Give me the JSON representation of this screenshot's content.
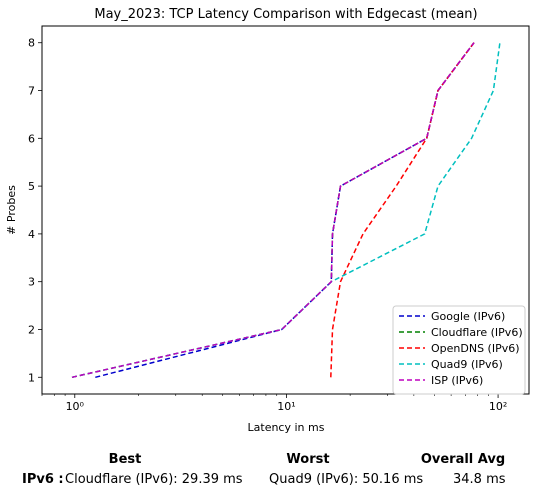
{
  "chart_data": {
    "type": "line",
    "title": "May_2023: TCP Latency Comparison with Edgecast (mean)",
    "xlabel": "Latency in ms",
    "ylabel": "# Probes",
    "xscale": "log",
    "xlim": [
      0.7,
      140
    ],
    "ylim": [
      0.65,
      8.35
    ],
    "x_ticks": [
      1,
      10,
      100
    ],
    "x_tick_labels": [
      "10⁰",
      "10¹",
      "10²"
    ],
    "y_ticks": [
      1,
      2,
      3,
      4,
      5,
      6,
      7,
      8
    ],
    "y_tick_labels": [
      "1",
      "2",
      "3",
      "4",
      "5",
      "6",
      "7",
      "8"
    ],
    "grid": false,
    "legend_position": "lower right",
    "y": [
      1,
      2,
      3,
      4,
      5,
      6,
      7,
      8
    ],
    "series": [
      {
        "name": "Google (IPv6)",
        "color": "#0000cc",
        "x": [
          1.25,
          9.5,
          16.3,
          16.5,
          18.0,
          46,
          52,
          77
        ]
      },
      {
        "name": "Cloudflare (IPv6)",
        "color": "#008000",
        "x": [
          0.97,
          9.5,
          16.3,
          16.5,
          18.0,
          46,
          52,
          77
        ]
      },
      {
        "name": "OpenDNS (IPv6)",
        "color": "#ff0000",
        "x": [
          16.2,
          16.5,
          18.0,
          23.0,
          33.0,
          46,
          52,
          77
        ]
      },
      {
        "name": "Quad9 (IPv6)",
        "color": "#00bfbf",
        "x": [
          0.97,
          9.5,
          16.3,
          45,
          52,
          75,
          95,
          102
        ]
      },
      {
        "name": "ISP (IPv6)",
        "color": "#bf00bf",
        "x": [
          0.97,
          9.5,
          16.3,
          16.5,
          18.0,
          46,
          52,
          77
        ]
      }
    ]
  },
  "summary": {
    "headers": {
      "best": "Best",
      "worst": "Worst",
      "avg": "Overall Avg"
    },
    "row_label": "IPv6 :",
    "best": "Cloudflare (IPv6): 29.39 ms",
    "worst": "Quad9 (IPv6): 50.16 ms",
    "avg": "34.8 ms"
  }
}
